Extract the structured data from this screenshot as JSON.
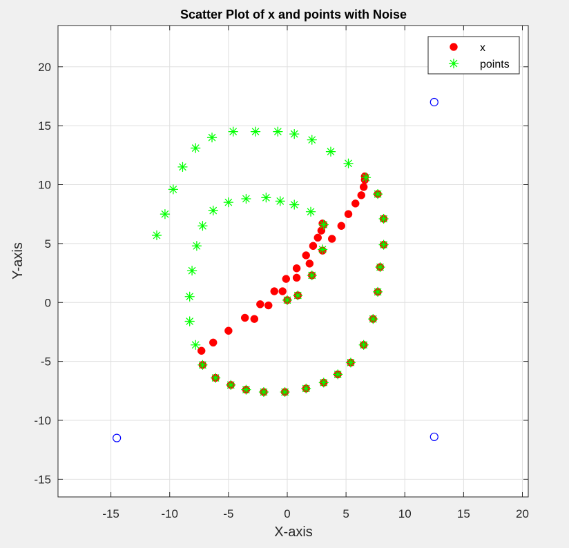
{
  "chart_data": {
    "type": "scatter",
    "title": "Scatter Plot of x and points with Noise",
    "xlabel": "X-axis",
    "ylabel": "Y-axis",
    "xlim": [
      -19.5,
      20.5
    ],
    "ylim": [
      -16.5,
      23.5
    ],
    "xticks": [
      -15,
      -10,
      -5,
      0,
      5,
      10,
      15,
      20
    ],
    "yticks": [
      -15,
      -10,
      -5,
      0,
      5,
      10,
      15,
      20
    ],
    "xtick_labels": [
      "-15",
      "-10",
      "-5",
      "0",
      "5",
      "10",
      "15",
      "20"
    ],
    "ytick_labels": [
      "-15",
      "-10",
      "-5",
      "0",
      "5",
      "10",
      "15",
      "20"
    ],
    "grid": true,
    "legend_position": "top-right",
    "series": [
      {
        "name": "x",
        "marker": "filled-circle",
        "color": "#ff0000",
        "points": [
          [
            -7.3,
            -4.1
          ],
          [
            -6.3,
            -3.4
          ],
          [
            -5.0,
            -2.4
          ],
          [
            -3.6,
            -1.3
          ],
          [
            -2.8,
            -1.4
          ],
          [
            -2.3,
            -0.15
          ],
          [
            -1.6,
            -0.25
          ],
          [
            -1.1,
            0.95
          ],
          [
            -0.4,
            0.95
          ],
          [
            -0.1,
            2.0
          ],
          [
            0.8,
            2.1
          ],
          [
            0.8,
            2.9
          ],
          [
            1.6,
            4.0
          ],
          [
            1.9,
            3.3
          ],
          [
            2.2,
            4.8
          ],
          [
            2.6,
            5.5
          ],
          [
            2.9,
            6.1
          ],
          [
            3.0,
            6.7
          ],
          [
            3.8,
            5.4
          ],
          [
            4.6,
            6.5
          ],
          [
            5.2,
            7.5
          ],
          [
            5.8,
            8.4
          ],
          [
            6.3,
            9.1
          ],
          [
            6.5,
            9.8
          ],
          [
            6.6,
            10.4
          ],
          [
            6.6,
            10.7
          ],
          [
            -7.2,
            -5.3
          ],
          [
            -6.1,
            -6.4
          ],
          [
            -4.8,
            -7.0
          ],
          [
            -3.5,
            -7.4
          ],
          [
            -2.0,
            -7.6
          ],
          [
            -0.2,
            -7.6
          ],
          [
            1.6,
            -7.3
          ],
          [
            3.1,
            -6.8
          ],
          [
            4.3,
            -6.1
          ],
          [
            5.4,
            -5.1
          ],
          [
            6.5,
            -3.6
          ],
          [
            7.3,
            -1.4
          ],
          [
            7.7,
            0.9
          ],
          [
            7.9,
            3.0
          ],
          [
            8.2,
            4.9
          ],
          [
            8.2,
            7.1
          ],
          [
            7.7,
            9.2
          ],
          [
            3.0,
            4.4
          ],
          [
            3.1,
            6.6
          ],
          [
            2.1,
            2.3
          ],
          [
            0.9,
            0.6
          ],
          [
            0.0,
            0.2
          ]
        ]
      },
      {
        "name": "points",
        "marker": "asterisk",
        "color": "#00ff00",
        "points": [
          [
            -11.1,
            5.7
          ],
          [
            -10.4,
            7.5
          ],
          [
            -9.7,
            9.6
          ],
          [
            -8.9,
            11.5
          ],
          [
            -7.8,
            13.1
          ],
          [
            -6.4,
            14.0
          ],
          [
            -4.6,
            14.5
          ],
          [
            -2.7,
            14.5
          ],
          [
            -0.8,
            14.5
          ],
          [
            0.6,
            14.3
          ],
          [
            2.1,
            13.8
          ],
          [
            3.7,
            12.8
          ],
          [
            5.2,
            11.8
          ],
          [
            6.7,
            10.6
          ],
          [
            -7.8,
            -3.6
          ],
          [
            -8.3,
            -1.6
          ],
          [
            -8.3,
            0.5
          ],
          [
            -8.1,
            2.7
          ],
          [
            -7.7,
            4.8
          ],
          [
            -7.2,
            6.5
          ],
          [
            -6.3,
            7.8
          ],
          [
            -5.0,
            8.5
          ],
          [
            -3.5,
            8.8
          ],
          [
            -1.8,
            8.9
          ],
          [
            -0.6,
            8.6
          ],
          [
            0.6,
            8.3
          ],
          [
            2.0,
            7.7
          ],
          [
            3.1,
            6.6
          ],
          [
            3.0,
            4.5
          ],
          [
            2.1,
            2.3
          ],
          [
            0.9,
            0.6
          ],
          [
            0.0,
            0.2
          ],
          [
            -7.2,
            -5.3
          ],
          [
            -6.1,
            -6.4
          ],
          [
            -4.8,
            -7.0
          ],
          [
            -3.5,
            -7.4
          ],
          [
            -2.0,
            -7.6
          ],
          [
            -0.2,
            -7.6
          ],
          [
            1.6,
            -7.3
          ],
          [
            3.1,
            -6.8
          ],
          [
            4.3,
            -6.1
          ],
          [
            5.4,
            -5.1
          ],
          [
            6.5,
            -3.6
          ],
          [
            7.3,
            -1.4
          ],
          [
            7.7,
            0.9
          ],
          [
            7.9,
            3.0
          ],
          [
            8.2,
            4.9
          ],
          [
            8.2,
            7.1
          ],
          [
            7.7,
            9.2
          ]
        ]
      },
      {
        "marker": "open-circle",
        "color": "#0000ff",
        "points": [
          [
            12.5,
            17.0
          ],
          [
            -14.5,
            -11.5
          ],
          [
            12.5,
            -11.4
          ]
        ]
      }
    ]
  }
}
